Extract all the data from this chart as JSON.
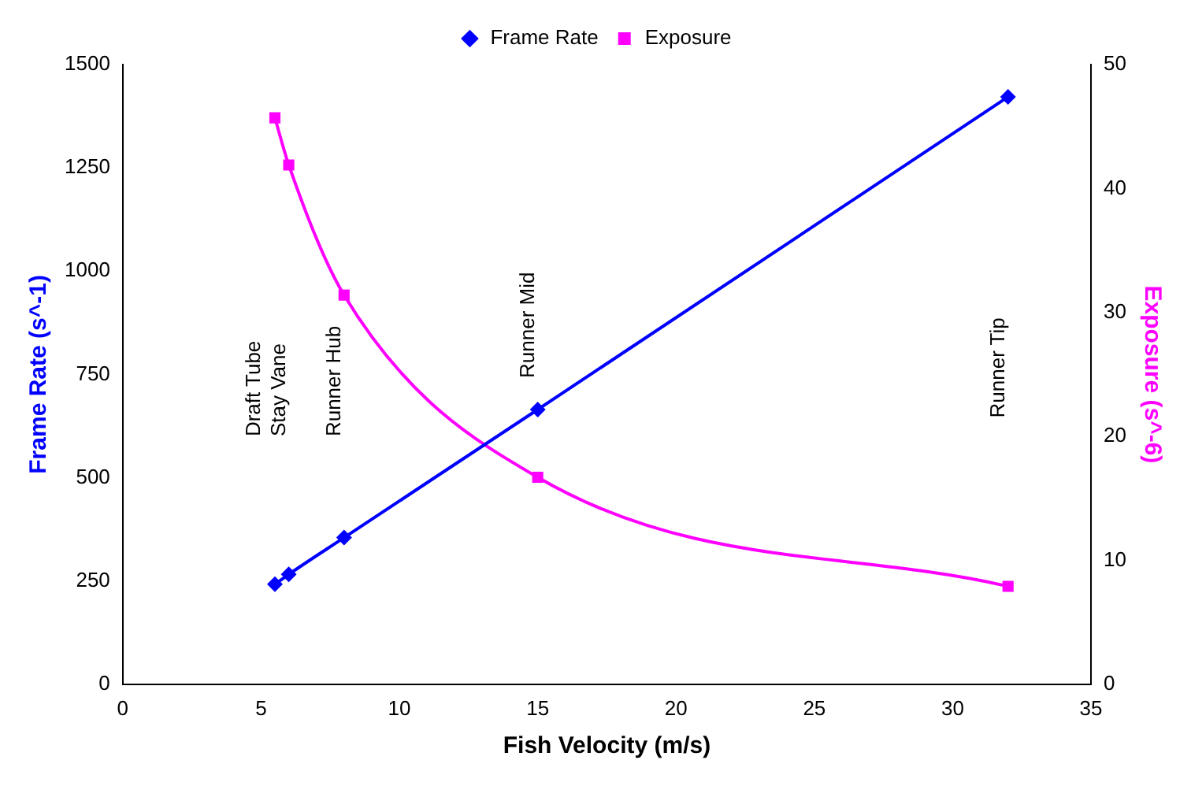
{
  "chart_data": {
    "type": "line",
    "xlabel": "Fish Velocity (m/s)",
    "ylabel": "Frame Rate (s^-1)",
    "y2label": "Exposure (s^-6)",
    "x": [
      5.5,
      6,
      8,
      15,
      32
    ],
    "series": [
      {
        "name": "Frame Rate",
        "color": "#0000ff",
        "values": [
          242,
          266,
          355,
          665,
          1422
        ],
        "marker": "diamond"
      },
      {
        "name": "Exposure",
        "color": "#ff00ff",
        "values": [
          45.7,
          41.9,
          31.4,
          16.7,
          7.9
        ],
        "axis": "y2",
        "marker": "square"
      }
    ],
    "xlim": [
      0,
      35
    ],
    "xticks": [
      0,
      5,
      10,
      15,
      20,
      25,
      30,
      35
    ],
    "ylim": [
      0,
      1500
    ],
    "yticks": [
      0,
      250,
      500,
      750,
      1000,
      1250,
      1500
    ],
    "y2lim": [
      0,
      50
    ],
    "y2ticks": [
      0,
      10,
      20,
      30,
      40,
      50
    ],
    "annotations": [
      "Draft Tube",
      "Stay Vane",
      "Runner Hub",
      "Runner Mid",
      "Runner Tip"
    ],
    "grid": false,
    "legend": "top"
  }
}
